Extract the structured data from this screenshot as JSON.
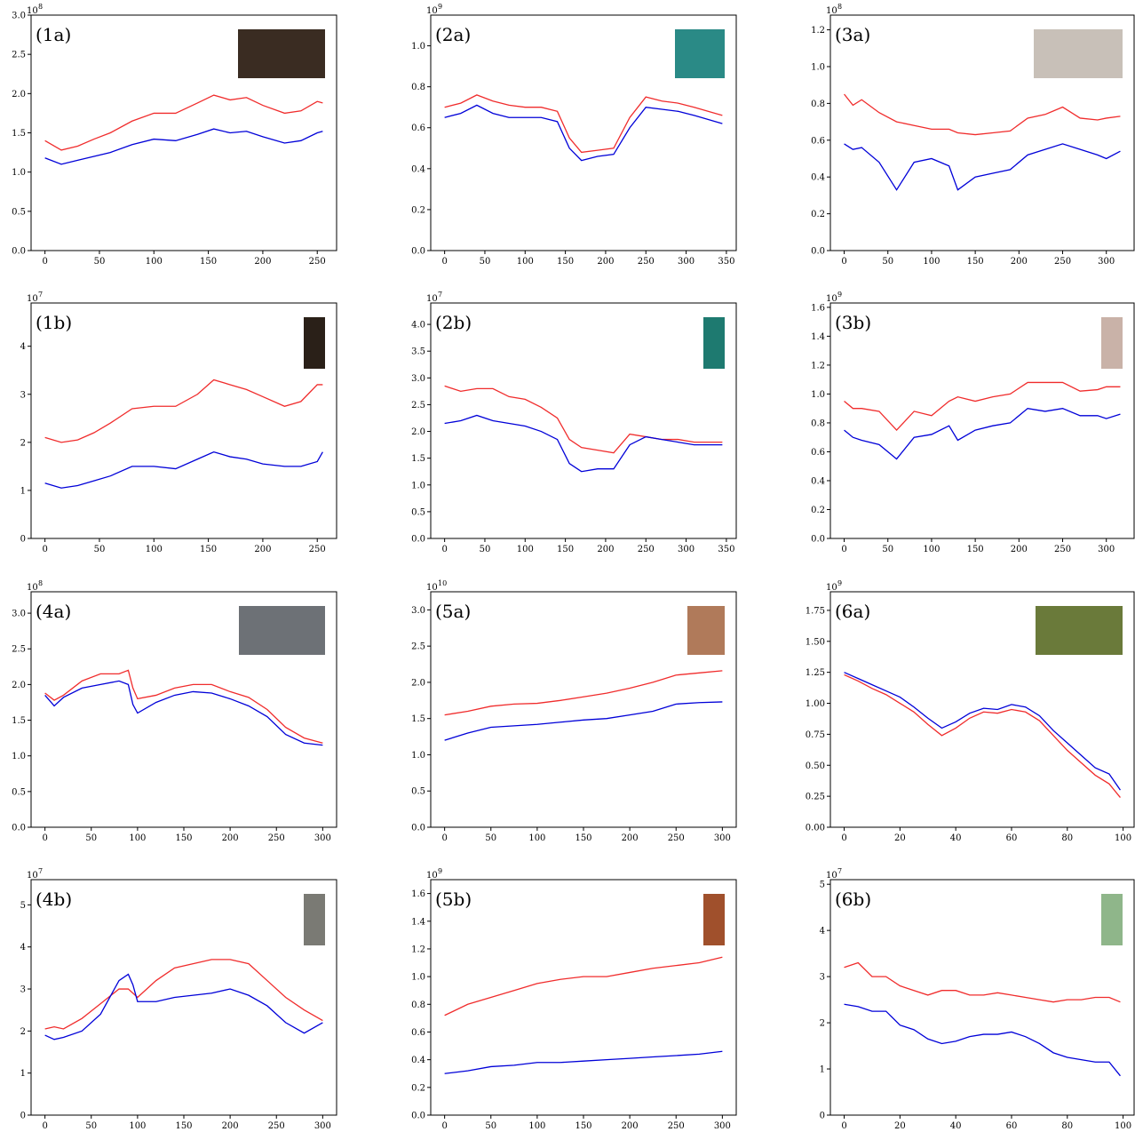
{
  "chart_data": [
    {
      "type": "line",
      "label": "(1a)",
      "offset": {
        "base": "10",
        "exponent": "8"
      },
      "x": [
        0,
        15,
        30,
        45,
        60,
        80,
        100,
        120,
        140,
        155,
        170,
        185,
        200,
        220,
        235,
        250,
        255
      ],
      "xlim": [
        -12.75,
        267.75
      ],
      "xticks": [
        0,
        50,
        100,
        150,
        200,
        250
      ],
      "ylim": [
        0,
        3.0
      ],
      "yticks": [
        {
          "value": 0,
          "label": "0.0"
        },
        0.5,
        {
          "value": 1,
          "label": "1.0"
        },
        1.5,
        {
          "value": 2,
          "label": "2.0"
        },
        2.5,
        {
          "value": 3,
          "label": "3.0"
        }
      ],
      "series": [
        {
          "color": "#f02c2c",
          "values": [
            1.4,
            1.28,
            1.33,
            1.42,
            1.5,
            1.65,
            1.75,
            1.75,
            1.88,
            1.98,
            1.92,
            1.95,
            1.85,
            1.75,
            1.78,
            1.9,
            1.88
          ]
        },
        {
          "color": "#0000d8",
          "values": [
            1.18,
            1.1,
            1.15,
            1.2,
            1.25,
            1.35,
            1.42,
            1.4,
            1.48,
            1.55,
            1.5,
            1.52,
            1.45,
            1.37,
            1.4,
            1.5,
            1.52
          ]
        }
      ]
    },
    {
      "type": "line",
      "label": "(2a)",
      "offset": {
        "base": "10",
        "exponent": "9"
      },
      "x": [
        0,
        20,
        40,
        60,
        80,
        100,
        120,
        140,
        155,
        170,
        190,
        210,
        230,
        250,
        270,
        290,
        310,
        345
      ],
      "xlim": [
        -17.25,
        362.25
      ],
      "xticks": [
        0,
        50,
        100,
        150,
        200,
        250,
        300,
        350
      ],
      "ylim": [
        0,
        1.15
      ],
      "yticks": [
        {
          "value": 0,
          "label": "0.0"
        },
        0.2,
        0.4,
        0.6,
        0.8,
        {
          "value": 1,
          "label": "1.0"
        }
      ],
      "series": [
        {
          "color": "#f02c2c",
          "values": [
            0.7,
            0.72,
            0.76,
            0.73,
            0.71,
            0.7,
            0.7,
            0.68,
            0.55,
            0.48,
            0.49,
            0.5,
            0.65,
            0.75,
            0.73,
            0.72,
            0.7,
            0.66
          ]
        },
        {
          "color": "#0000d8",
          "values": [
            0.65,
            0.67,
            0.71,
            0.67,
            0.65,
            0.65,
            0.65,
            0.63,
            0.5,
            0.44,
            0.46,
            0.47,
            0.6,
            0.7,
            0.69,
            0.68,
            0.66,
            0.62
          ]
        }
      ]
    },
    {
      "type": "line",
      "label": "(3a)",
      "offset": {
        "base": "10",
        "exponent": "8"
      },
      "x": [
        0,
        10,
        20,
        40,
        60,
        80,
        100,
        120,
        130,
        150,
        170,
        190,
        210,
        230,
        250,
        270,
        290,
        300,
        316
      ],
      "xlim": [
        -15.8,
        331.8
      ],
      "xticks": [
        0,
        50,
        100,
        150,
        200,
        250,
        300
      ],
      "ylim": [
        0,
        1.28
      ],
      "yticks": [
        {
          "value": 0,
          "label": "0.0"
        },
        0.2,
        0.4,
        0.6,
        0.8,
        {
          "value": 1,
          "label": "1.0"
        },
        1.2
      ],
      "series": [
        {
          "color": "#f02c2c",
          "values": [
            0.85,
            0.79,
            0.82,
            0.75,
            0.7,
            0.68,
            0.66,
            0.66,
            0.64,
            0.63,
            0.64,
            0.65,
            0.72,
            0.74,
            0.78,
            0.72,
            0.71,
            0.72,
            0.73
          ]
        },
        {
          "color": "#0000d8",
          "values": [
            0.58,
            0.55,
            0.56,
            0.48,
            0.33,
            0.48,
            0.5,
            0.46,
            0.33,
            0.4,
            0.42,
            0.44,
            0.52,
            0.55,
            0.58,
            0.55,
            0.52,
            0.5,
            0.54
          ]
        }
      ]
    },
    {
      "type": "line",
      "label": "(1b)",
      "offset": {
        "base": "10",
        "exponent": "7"
      },
      "x": [
        0,
        15,
        30,
        45,
        60,
        80,
        100,
        120,
        140,
        155,
        170,
        185,
        200,
        220,
        235,
        250,
        255
      ],
      "xlim": [
        -12.75,
        267.75
      ],
      "xticks": [
        0,
        50,
        100,
        150,
        200,
        250
      ],
      "ylim": [
        0,
        4.9
      ],
      "yticks": [
        0,
        1,
        2,
        3,
        4
      ],
      "series": [
        {
          "color": "#f02c2c",
          "values": [
            2.1,
            2.0,
            2.05,
            2.2,
            2.4,
            2.7,
            2.75,
            2.75,
            3.0,
            3.3,
            3.2,
            3.1,
            2.95,
            2.75,
            2.85,
            3.2,
            3.2
          ]
        },
        {
          "color": "#0000d8",
          "values": [
            1.15,
            1.05,
            1.1,
            1.2,
            1.3,
            1.5,
            1.5,
            1.45,
            1.65,
            1.8,
            1.7,
            1.65,
            1.55,
            1.5,
            1.5,
            1.6,
            1.8
          ]
        }
      ]
    },
    {
      "type": "line",
      "label": "(2b)",
      "offset": {
        "base": "10",
        "exponent": "7"
      },
      "x": [
        0,
        20,
        40,
        60,
        80,
        100,
        120,
        140,
        155,
        170,
        190,
        210,
        230,
        250,
        270,
        290,
        310,
        345
      ],
      "xlim": [
        -17.25,
        362.25
      ],
      "xticks": [
        0,
        50,
        100,
        150,
        200,
        250,
        300,
        350
      ],
      "ylim": [
        0,
        4.4
      ],
      "yticks": [
        {
          "value": 0,
          "label": "0.0"
        },
        0.5,
        {
          "value": 1,
          "label": "1.0"
        },
        1.5,
        {
          "value": 2,
          "label": "2.0"
        },
        2.5,
        {
          "value": 3,
          "label": "3.0"
        },
        3.5,
        {
          "value": 4,
          "label": "4.0"
        }
      ],
      "series": [
        {
          "color": "#f02c2c",
          "values": [
            2.85,
            2.75,
            2.8,
            2.8,
            2.65,
            2.6,
            2.45,
            2.25,
            1.85,
            1.7,
            1.65,
            1.6,
            1.95,
            1.9,
            1.85,
            1.85,
            1.8,
            1.8
          ]
        },
        {
          "color": "#0000d8",
          "values": [
            2.15,
            2.2,
            2.3,
            2.2,
            2.15,
            2.1,
            2.0,
            1.85,
            1.4,
            1.25,
            1.3,
            1.3,
            1.75,
            1.9,
            1.85,
            1.8,
            1.75,
            1.75
          ]
        }
      ]
    },
    {
      "type": "line",
      "label": "(3b)",
      "offset": {
        "base": "10",
        "exponent": "9"
      },
      "x": [
        0,
        10,
        20,
        40,
        60,
        80,
        100,
        120,
        130,
        150,
        170,
        190,
        210,
        230,
        250,
        270,
        290,
        300,
        316
      ],
      "xlim": [
        -15.8,
        331.8
      ],
      "xticks": [
        0,
        50,
        100,
        150,
        200,
        250,
        300
      ],
      "ylim": [
        0,
        1.63
      ],
      "yticks": [
        {
          "value": 0,
          "label": "0.0"
        },
        0.2,
        0.4,
        0.6,
        0.8,
        {
          "value": 1,
          "label": "1.0"
        },
        1.2,
        1.4,
        1.6
      ],
      "series": [
        {
          "color": "#f02c2c",
          "values": [
            0.95,
            0.9,
            0.9,
            0.88,
            0.75,
            0.88,
            0.85,
            0.95,
            0.98,
            0.95,
            0.98,
            1.0,
            1.08,
            1.08,
            1.08,
            1.02,
            1.03,
            1.05,
            1.05
          ]
        },
        {
          "color": "#0000d8",
          "values": [
            0.75,
            0.7,
            0.68,
            0.65,
            0.55,
            0.7,
            0.72,
            0.78,
            0.68,
            0.75,
            0.78,
            0.8,
            0.9,
            0.88,
            0.9,
            0.85,
            0.85,
            0.83,
            0.86
          ]
        }
      ]
    },
    {
      "type": "line",
      "label": "(4a)",
      "offset": {
        "base": "10",
        "exponent": "8"
      },
      "x": [
        0,
        10,
        20,
        40,
        60,
        80,
        90,
        95,
        100,
        120,
        140,
        160,
        180,
        200,
        220,
        240,
        260,
        280,
        300
      ],
      "xlim": [
        -15,
        315
      ],
      "xticks": [
        0,
        50,
        100,
        150,
        200,
        250,
        300
      ],
      "ylim": [
        0,
        3.3
      ],
      "yticks": [
        {
          "value": 0,
          "label": "0.0"
        },
        0.5,
        {
          "value": 1,
          "label": "1.0"
        },
        1.5,
        {
          "value": 2,
          "label": "2.0"
        },
        2.5,
        {
          "value": 3,
          "label": "3.0"
        }
      ],
      "series": [
        {
          "color": "#f02c2c",
          "values": [
            1.88,
            1.78,
            1.85,
            2.05,
            2.15,
            2.15,
            2.2,
            1.95,
            1.8,
            1.85,
            1.95,
            2.0,
            2.0,
            1.9,
            1.82,
            1.65,
            1.4,
            1.25,
            1.18
          ]
        },
        {
          "color": "#0000d8",
          "values": [
            1.85,
            1.7,
            1.82,
            1.95,
            2.0,
            2.05,
            2.0,
            1.72,
            1.6,
            1.75,
            1.85,
            1.9,
            1.88,
            1.8,
            1.7,
            1.55,
            1.3,
            1.18,
            1.15
          ]
        }
      ]
    },
    {
      "type": "line",
      "label": "(5a)",
      "offset": {
        "base": "10",
        "exponent": "10"
      },
      "x": [
        0,
        25,
        50,
        75,
        100,
        125,
        150,
        175,
        200,
        225,
        250,
        275,
        300
      ],
      "xlim": [
        -15,
        315
      ],
      "xticks": [
        0,
        50,
        100,
        150,
        200,
        250,
        300
      ],
      "ylim": [
        0,
        3.25
      ],
      "yticks": [
        {
          "value": 0,
          "label": "0.0"
        },
        0.5,
        {
          "value": 1,
          "label": "1.0"
        },
        1.5,
        {
          "value": 2,
          "label": "2.0"
        },
        2.5,
        {
          "value": 3,
          "label": "3.0"
        }
      ],
      "series": [
        {
          "color": "#f02c2c",
          "values": [
            1.55,
            1.6,
            1.67,
            1.7,
            1.71,
            1.75,
            1.8,
            1.85,
            1.92,
            2.0,
            2.1,
            2.13,
            2.16
          ]
        },
        {
          "color": "#0000d8",
          "values": [
            1.2,
            1.3,
            1.38,
            1.4,
            1.42,
            1.45,
            1.48,
            1.5,
            1.55,
            1.6,
            1.7,
            1.72,
            1.73
          ]
        }
      ]
    },
    {
      "type": "line",
      "label": "(6a)",
      "offset": {
        "base": "10",
        "exponent": "9"
      },
      "x": [
        0,
        5,
        10,
        15,
        20,
        25,
        30,
        35,
        40,
        45,
        50,
        55,
        60,
        65,
        70,
        75,
        80,
        85,
        90,
        95,
        99
      ],
      "xlim": [
        -4.95,
        103.95
      ],
      "xticks": [
        0,
        20,
        40,
        60,
        80,
        100
      ],
      "ylim": [
        0,
        1.9
      ],
      "yticks": [
        {
          "value": 0,
          "label": "0.00"
        },
        0.25,
        {
          "value": 0.5,
          "label": "0.50"
        },
        0.75,
        {
          "value": 1,
          "label": "1.00"
        },
        1.25,
        {
          "value": 1.5,
          "label": "1.50"
        },
        1.75
      ],
      "series": [
        {
          "color": "#f02c2c",
          "values": [
            1.23,
            1.18,
            1.12,
            1.07,
            1.0,
            0.93,
            0.83,
            0.74,
            0.8,
            0.88,
            0.93,
            0.92,
            0.95,
            0.93,
            0.86,
            0.74,
            0.62,
            0.52,
            0.42,
            0.35,
            0.24
          ]
        },
        {
          "color": "#0000d8",
          "values": [
            1.25,
            1.2,
            1.15,
            1.1,
            1.05,
            0.97,
            0.88,
            0.8,
            0.85,
            0.92,
            0.96,
            0.95,
            0.99,
            0.97,
            0.9,
            0.78,
            0.68,
            0.58,
            0.48,
            0.43,
            0.3
          ]
        }
      ]
    },
    {
      "type": "line",
      "label": "(4b)",
      "offset": {
        "base": "10",
        "exponent": "7"
      },
      "x": [
        0,
        10,
        20,
        40,
        60,
        80,
        90,
        95,
        100,
        120,
        140,
        160,
        180,
        200,
        220,
        240,
        260,
        280,
        300
      ],
      "xlim": [
        -15,
        315
      ],
      "xticks": [
        0,
        50,
        100,
        150,
        200,
        250,
        300
      ],
      "ylim": [
        0,
        5.6
      ],
      "yticks": [
        0,
        1,
        2,
        3,
        4,
        5
      ],
      "series": [
        {
          "color": "#f02c2c",
          "values": [
            2.05,
            2.1,
            2.05,
            2.3,
            2.65,
            3.0,
            3.0,
            2.9,
            2.8,
            3.2,
            3.5,
            3.6,
            3.7,
            3.7,
            3.6,
            3.2,
            2.8,
            2.5,
            2.25
          ]
        },
        {
          "color": "#0000d8",
          "values": [
            1.9,
            1.8,
            1.85,
            2.0,
            2.4,
            3.2,
            3.35,
            3.1,
            2.7,
            2.7,
            2.8,
            2.85,
            2.9,
            3.0,
            2.85,
            2.6,
            2.2,
            1.95,
            2.2
          ]
        }
      ]
    },
    {
      "type": "line",
      "label": "(5b)",
      "offset": {
        "base": "10",
        "exponent": "9"
      },
      "x": [
        0,
        25,
        50,
        75,
        100,
        125,
        150,
        175,
        200,
        225,
        250,
        275,
        300
      ],
      "xlim": [
        -15,
        315
      ],
      "xticks": [
        0,
        50,
        100,
        150,
        200,
        250,
        300
      ],
      "ylim": [
        0,
        1.7
      ],
      "yticks": [
        {
          "value": 0,
          "label": "0.0"
        },
        0.2,
        0.4,
        0.6,
        0.8,
        {
          "value": 1,
          "label": "1.0"
        },
        1.2,
        1.4,
        1.6
      ],
      "series": [
        {
          "color": "#f02c2c",
          "values": [
            0.72,
            0.8,
            0.85,
            0.9,
            0.95,
            0.98,
            1.0,
            1.0,
            1.03,
            1.06,
            1.08,
            1.1,
            1.14
          ]
        },
        {
          "color": "#0000d8",
          "values": [
            0.3,
            0.32,
            0.35,
            0.36,
            0.38,
            0.38,
            0.39,
            0.4,
            0.41,
            0.42,
            0.43,
            0.44,
            0.46
          ]
        }
      ]
    },
    {
      "type": "line",
      "label": "(6b)",
      "offset": {
        "base": "10",
        "exponent": "7"
      },
      "x": [
        0,
        5,
        10,
        15,
        20,
        25,
        30,
        35,
        40,
        45,
        50,
        55,
        60,
        65,
        70,
        75,
        80,
        85,
        90,
        95,
        99
      ],
      "xlim": [
        -4.95,
        103.95
      ],
      "xticks": [
        0,
        20,
        40,
        60,
        80,
        100
      ],
      "ylim": [
        0,
        5.1
      ],
      "yticks": [
        0,
        1,
        2,
        3,
        4,
        5
      ],
      "series": [
        {
          "color": "#f02c2c",
          "values": [
            3.2,
            3.3,
            3.0,
            3.0,
            2.8,
            2.7,
            2.6,
            2.7,
            2.7,
            2.6,
            2.6,
            2.65,
            2.6,
            2.55,
            2.5,
            2.45,
            2.5,
            2.5,
            2.55,
            2.55,
            2.45
          ]
        },
        {
          "color": "#0000d8",
          "values": [
            2.4,
            2.35,
            2.25,
            2.25,
            1.95,
            1.85,
            1.65,
            1.55,
            1.6,
            1.7,
            1.75,
            1.75,
            1.8,
            1.7,
            1.55,
            1.35,
            1.25,
            1.2,
            1.15,
            1.15,
            0.85
          ]
        }
      ]
    }
  ]
}
